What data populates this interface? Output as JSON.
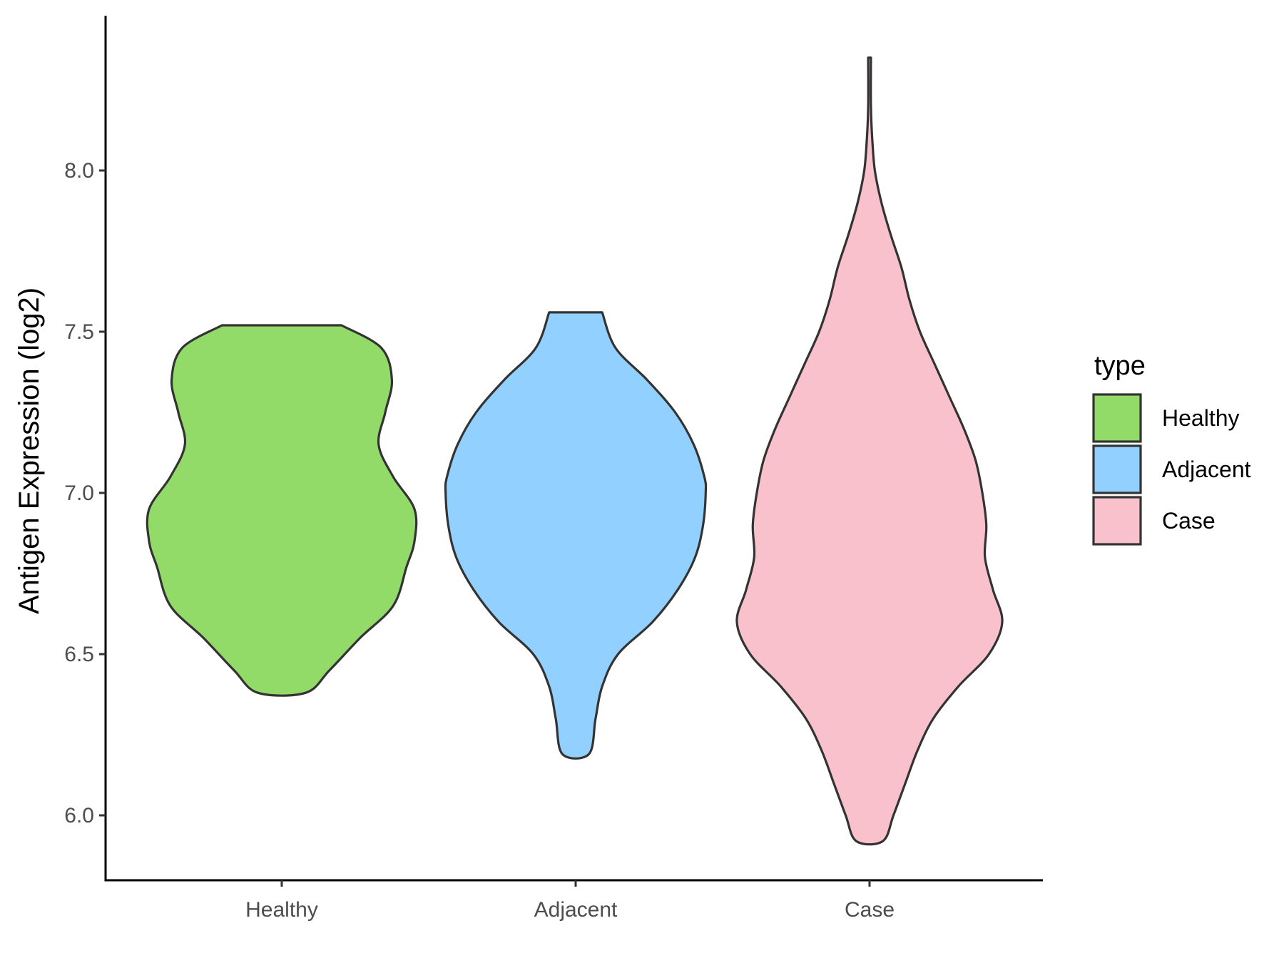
{
  "chart_data": {
    "type": "violin",
    "title": "",
    "xlabel": "",
    "ylabel": "Antigen Expression (log2)",
    "ylim": [
      5.88,
      8.42
    ],
    "yticks": [
      6.0,
      6.5,
      7.0,
      7.5,
      8.0
    ],
    "ytick_labels": [
      "6.0",
      "6.5",
      "7.0",
      "7.5",
      "8.0"
    ],
    "categories": [
      "Healthy",
      "Adjacent",
      "Case"
    ],
    "grid": false,
    "legend": {
      "title": "type",
      "position": "right",
      "entries": [
        "Healthy",
        "Adjacent",
        "Case"
      ]
    },
    "series": [
      {
        "category": "Healthy",
        "color": "#93DB69",
        "min": 6.38,
        "max": 7.52,
        "density": [
          [
            7.52,
            0.45
          ],
          [
            7.45,
            0.75
          ],
          [
            7.35,
            0.83
          ],
          [
            7.25,
            0.78
          ],
          [
            7.15,
            0.73
          ],
          [
            7.05,
            0.84
          ],
          [
            6.95,
            1.0
          ],
          [
            6.85,
            1.0
          ],
          [
            6.77,
            0.94
          ],
          [
            6.65,
            0.84
          ],
          [
            6.55,
            0.59
          ],
          [
            6.45,
            0.36
          ],
          [
            6.38,
            0.18
          ]
        ]
      },
      {
        "category": "Adjacent",
        "color": "#92D1FF",
        "min": 6.19,
        "max": 7.56,
        "density": [
          [
            7.56,
            0.2
          ],
          [
            7.45,
            0.3
          ],
          [
            7.35,
            0.54
          ],
          [
            7.25,
            0.75
          ],
          [
            7.15,
            0.89
          ],
          [
            7.05,
            0.97
          ],
          [
            7.0,
            0.98
          ],
          [
            6.9,
            0.96
          ],
          [
            6.8,
            0.9
          ],
          [
            6.7,
            0.77
          ],
          [
            6.6,
            0.58
          ],
          [
            6.5,
            0.32
          ],
          [
            6.4,
            0.2
          ],
          [
            6.3,
            0.15
          ],
          [
            6.19,
            0.1
          ]
        ]
      },
      {
        "category": "Case",
        "color": "#F8C1CC",
        "min": 5.92,
        "max": 8.35,
        "density": [
          [
            8.35,
            0.01
          ],
          [
            8.2,
            0.01
          ],
          [
            8.1,
            0.02
          ],
          [
            8.0,
            0.04
          ],
          [
            7.9,
            0.09
          ],
          [
            7.8,
            0.16
          ],
          [
            7.7,
            0.24
          ],
          [
            7.6,
            0.3
          ],
          [
            7.5,
            0.38
          ],
          [
            7.4,
            0.49
          ],
          [
            7.3,
            0.6
          ],
          [
            7.2,
            0.71
          ],
          [
            7.1,
            0.8
          ],
          [
            7.0,
            0.85
          ],
          [
            6.9,
            0.88
          ],
          [
            6.8,
            0.87
          ],
          [
            6.7,
            0.93
          ],
          [
            6.6,
            1.0
          ],
          [
            6.5,
            0.9
          ],
          [
            6.4,
            0.67
          ],
          [
            6.3,
            0.48
          ],
          [
            6.2,
            0.36
          ],
          [
            6.1,
            0.27
          ],
          [
            6.0,
            0.18
          ],
          [
            5.92,
            0.1
          ]
        ]
      }
    ]
  }
}
